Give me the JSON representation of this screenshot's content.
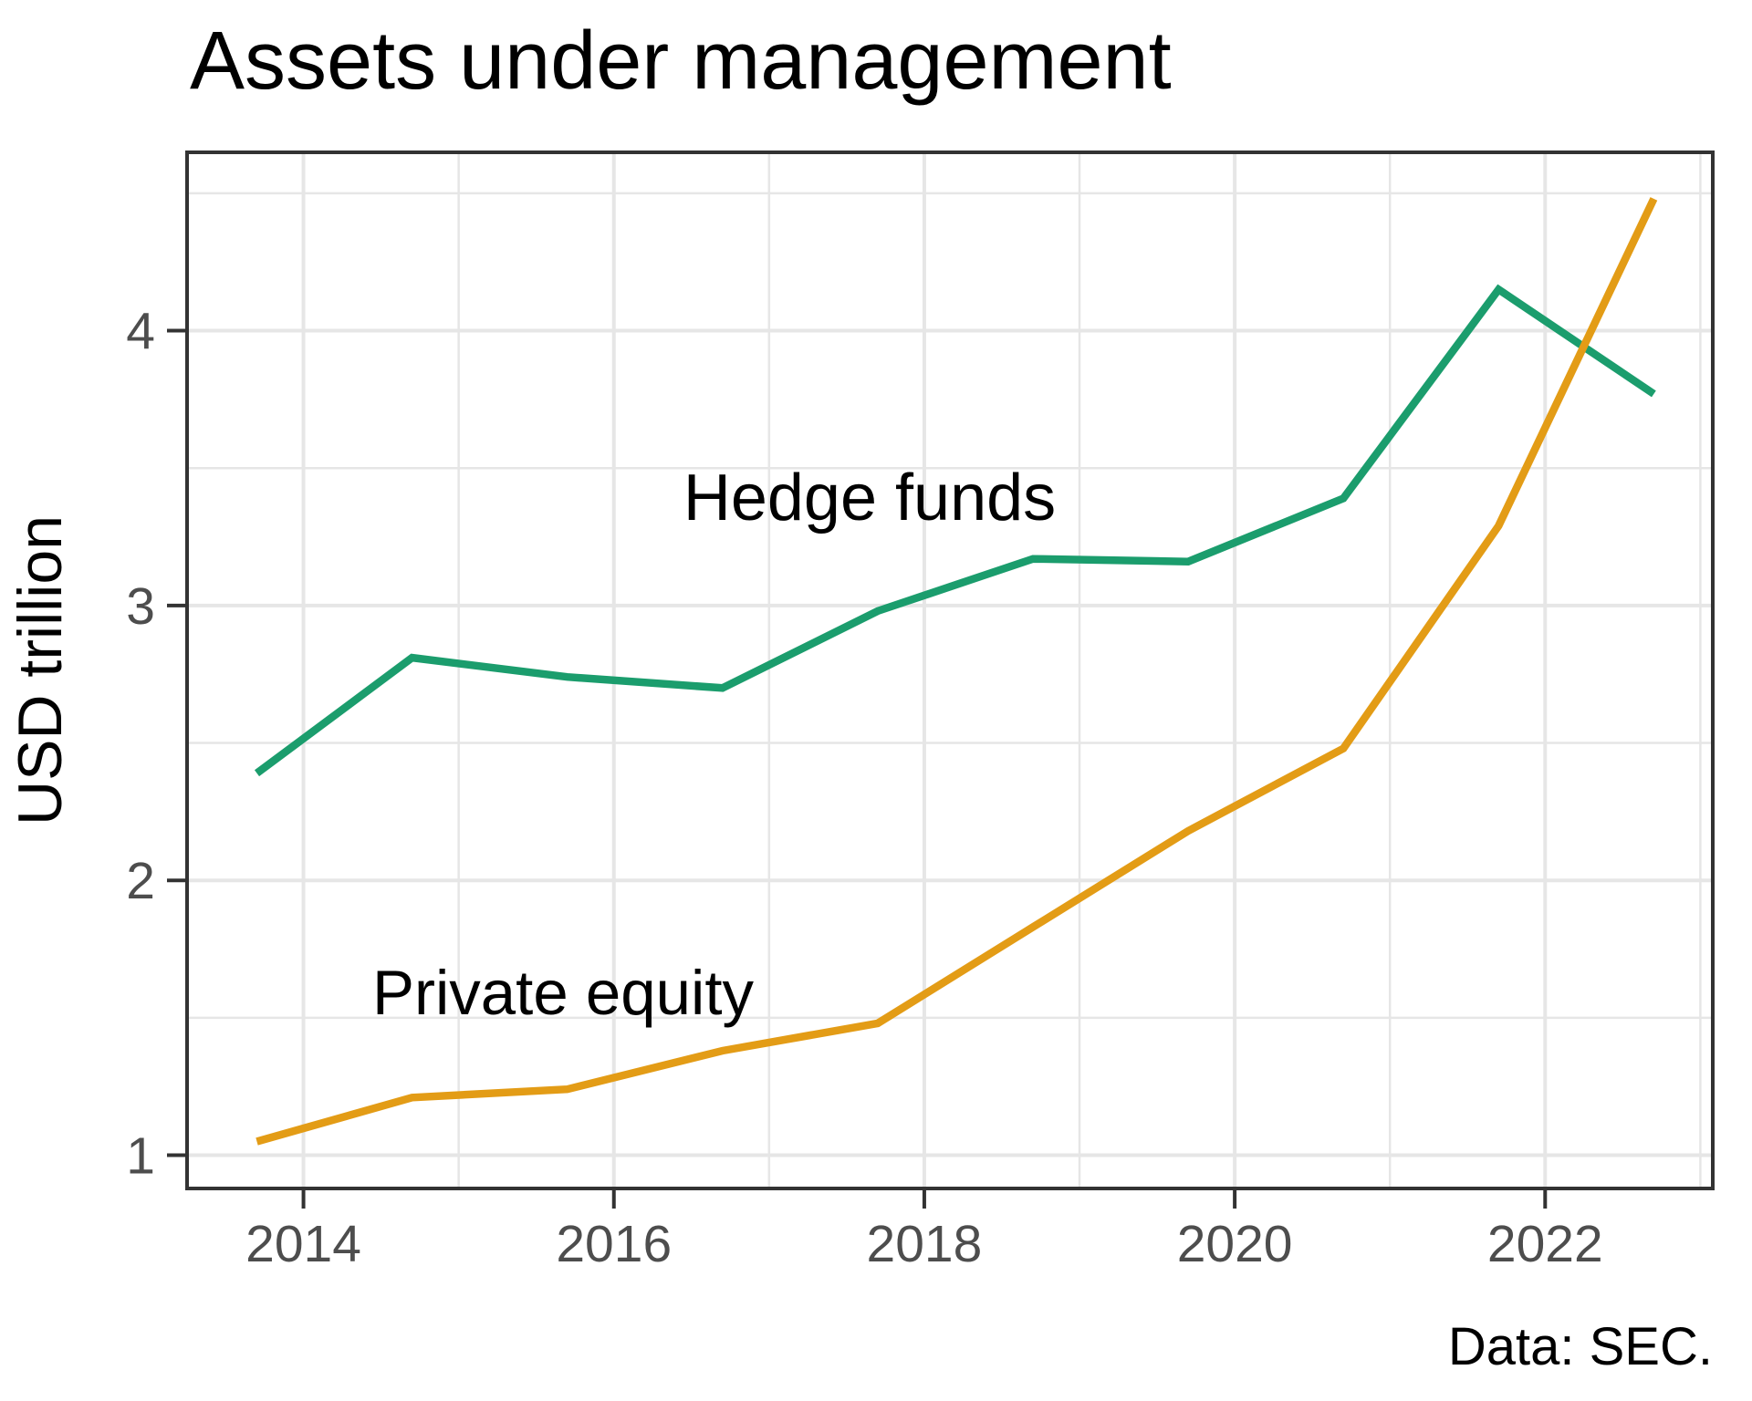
{
  "title": "Assets under management",
  "y_axis": {
    "label": "USD trillion",
    "tick_labels": [
      "1",
      "2",
      "3",
      "4"
    ]
  },
  "x_axis": {
    "tick_labels": [
      "2014",
      "2016",
      "2018",
      "2020",
      "2022"
    ]
  },
  "caption": "Data: SEC.",
  "annotations": {
    "hedge_funds": {
      "text": "Hedge funds"
    },
    "private_equity": {
      "text": "Private equity"
    }
  },
  "colors": {
    "hedge_funds": "#1B9D6D",
    "private_equity": "#E39C16",
    "grid": "#E6E6E6",
    "axis": "#333333",
    "tick_label": "#4D4D4D",
    "text": "#000000",
    "background": "#FFFFFF"
  },
  "chart_data": {
    "type": "line",
    "title": "Assets under management",
    "xlabel": "",
    "ylabel": "USD trillion",
    "caption": "Data: SEC.",
    "x": [
      2013.7,
      2014.7,
      2015.7,
      2016.7,
      2017.7,
      2018.7,
      2019.7,
      2020.7,
      2021.7,
      2022.7
    ],
    "series": [
      {
        "name": "Hedge funds",
        "color": "#1B9D6D",
        "values": [
          2.39,
          2.81,
          2.74,
          2.7,
          2.98,
          3.17,
          3.16,
          3.39,
          4.15,
          3.77
        ]
      },
      {
        "name": "Private equity",
        "color": "#E39C16",
        "values": [
          1.05,
          1.21,
          1.24,
          1.38,
          1.48,
          1.83,
          2.18,
          2.48,
          3.29,
          4.48
        ]
      }
    ],
    "x_ticks": [
      2014,
      2016,
      2018,
      2020,
      2022
    ],
    "y_ticks": [
      1,
      2,
      3,
      4
    ],
    "xlim": [
      2013.25,
      2023.08
    ],
    "ylim": [
      0.879,
      4.649
    ],
    "grid": "major-and-minor",
    "legend": "direct-labels-on-plot"
  }
}
